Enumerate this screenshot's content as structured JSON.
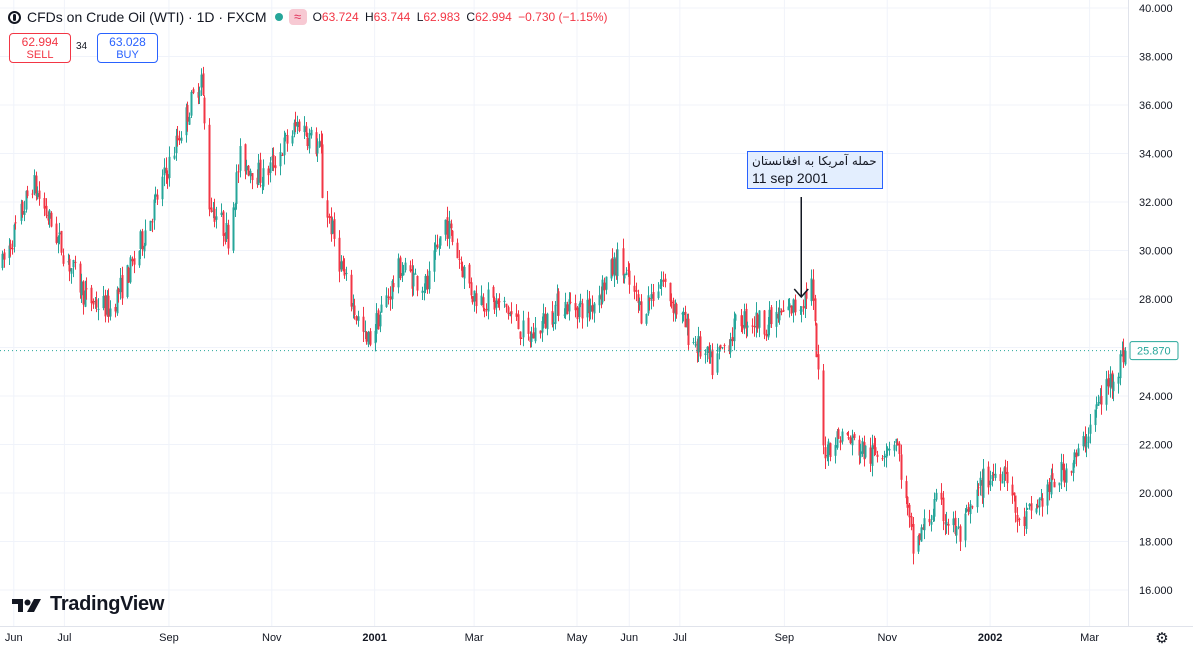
{
  "header": {
    "symbol_title": "CFDs on Crude Oil (WTI) · 1D · FXCM",
    "ohlc": {
      "open_label": "O",
      "open": "63.724",
      "high_label": "H",
      "high": "63.744",
      "low_label": "L",
      "low": "62.983",
      "close_label": "C",
      "close": "62.994",
      "change": "−0.730 (−1.15%)"
    },
    "sell": {
      "price": "62.994",
      "label": "SELL"
    },
    "spread": "34",
    "buy": {
      "price": "63.028",
      "label": "BUY"
    }
  },
  "brand": {
    "name": "TradingView"
  },
  "annotation": {
    "line1": "حمله آمریکا به افغانستان",
    "line2": "11 sep 2001"
  },
  "colors": {
    "up": "#26a69a",
    "down": "#f23645",
    "grid": "#f0f3fa",
    "axis_text": "#131722",
    "accent": "#2962ff"
  },
  "icons": {
    "legend": "symbol-logo-icon",
    "status": "market-status-dot-icon",
    "indicator": "wave-icon",
    "settings": "gear-icon"
  },
  "chart_data": {
    "type": "candlestick",
    "title": "CFDs on Crude Oil (WTI) · 1D · FXCM",
    "y_axis": {
      "ticks": [
        "40.000",
        "38.000",
        "36.000",
        "34.000",
        "32.000",
        "30.000",
        "28.000",
        "26.000",
        "24.000",
        "22.000",
        "20.000",
        "18.000",
        "16.000"
      ],
      "ylim": [
        15.3,
        40.2
      ],
      "side": "right"
    },
    "x_axis": {
      "ticks": [
        "Jun",
        "Jul",
        "Sep",
        "Nov",
        "2001",
        "Mar",
        "May",
        "Jun",
        "Jul",
        "Sep",
        "Nov",
        "2002",
        "Mar"
      ],
      "range": [
        "2000-05-25",
        "2002-03-22"
      ]
    },
    "last_price": "25.870",
    "grid": true,
    "path_keypoints": [
      {
        "date": "2000-05-25",
        "close": 29.4
      },
      {
        "date": "2000-06-12",
        "close": 32.8
      },
      {
        "date": "2000-06-30",
        "close": 30.0
      },
      {
        "date": "2000-07-14",
        "close": 28.0
      },
      {
        "date": "2000-07-28",
        "close": 27.6
      },
      {
        "date": "2000-08-11",
        "close": 29.5
      },
      {
        "date": "2000-08-25",
        "close": 32.2
      },
      {
        "date": "2000-09-08",
        "close": 35.0
      },
      {
        "date": "2000-09-20",
        "close": 37.2
      },
      {
        "date": "2000-09-25",
        "close": 32.0
      },
      {
        "date": "2000-10-06",
        "close": 30.6
      },
      {
        "date": "2000-10-13",
        "close": 33.8
      },
      {
        "date": "2000-10-27",
        "close": 33.0
      },
      {
        "date": "2000-11-17",
        "close": 35.3
      },
      {
        "date": "2000-11-30",
        "close": 34.0
      },
      {
        "date": "2000-12-01",
        "close": 32.4
      },
      {
        "date": "2000-12-14",
        "close": 28.8
      },
      {
        "date": "2000-12-27",
        "close": 26.1
      },
      {
        "date": "2001-01-16",
        "close": 29.3
      },
      {
        "date": "2001-02-01",
        "close": 28.5
      },
      {
        "date": "2001-02-12",
        "close": 31.2
      },
      {
        "date": "2001-02-28",
        "close": 28.2
      },
      {
        "date": "2001-03-20",
        "close": 27.6
      },
      {
        "date": "2001-04-02",
        "close": 26.3
      },
      {
        "date": "2001-04-20",
        "close": 27.8
      },
      {
        "date": "2001-05-08",
        "close": 27.6
      },
      {
        "date": "2001-05-25",
        "close": 29.6
      },
      {
        "date": "2001-06-08",
        "close": 27.5
      },
      {
        "date": "2001-06-20",
        "close": 28.8
      },
      {
        "date": "2001-07-06",
        "close": 26.6
      },
      {
        "date": "2001-07-20",
        "close": 25.2
      },
      {
        "date": "2001-08-06",
        "close": 27.2
      },
      {
        "date": "2001-08-22",
        "close": 27.0
      },
      {
        "date": "2001-09-10",
        "close": 27.8
      },
      {
        "date": "2001-09-17",
        "close": 28.6
      },
      {
        "date": "2001-09-24",
        "close": 21.8
      },
      {
        "date": "2001-10-05",
        "close": 22.4
      },
      {
        "date": "2001-10-22",
        "close": 21.5
      },
      {
        "date": "2001-11-06",
        "close": 22.3
      },
      {
        "date": "2001-11-16",
        "close": 17.7
      },
      {
        "date": "2001-11-30",
        "close": 19.5
      },
      {
        "date": "2001-12-14",
        "close": 18.2
      },
      {
        "date": "2001-12-28",
        "close": 20.5
      },
      {
        "date": "2002-01-10",
        "close": 21.1
      },
      {
        "date": "2002-01-18",
        "close": 18.6
      },
      {
        "date": "2002-01-31",
        "close": 19.7
      },
      {
        "date": "2002-02-12",
        "close": 20.8
      },
      {
        "date": "2002-02-22",
        "close": 21.5
      },
      {
        "date": "2002-03-05",
        "close": 23.5
      },
      {
        "date": "2002-03-22",
        "close": 25.87
      }
    ]
  }
}
